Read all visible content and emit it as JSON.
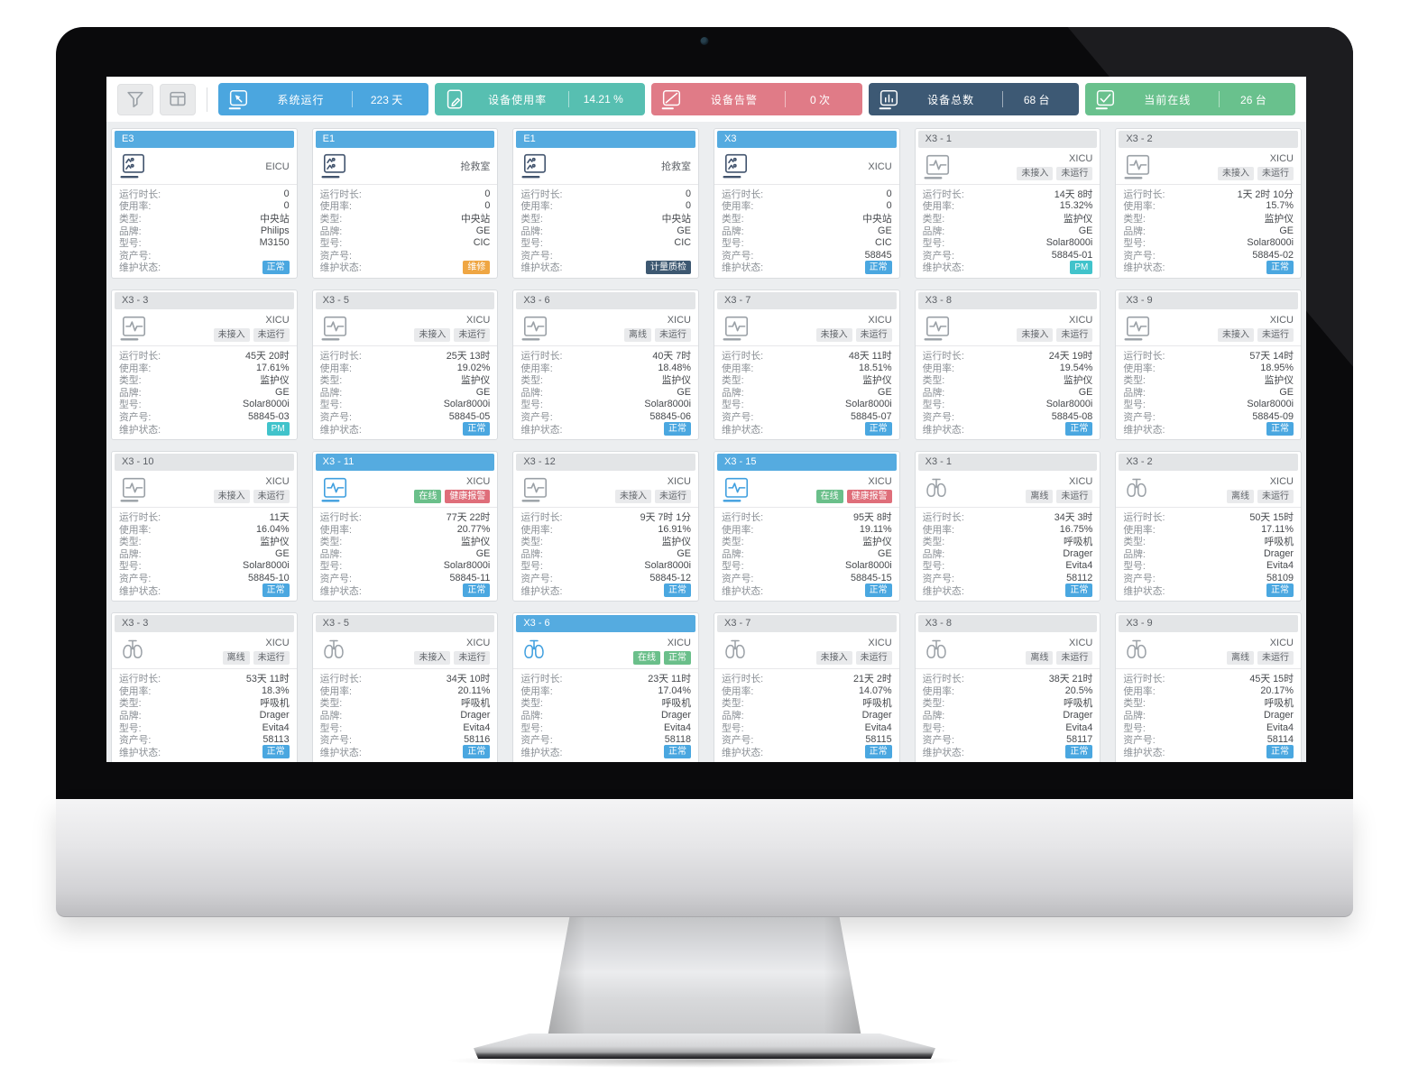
{
  "toolbar": {
    "filter_button": {
      "icon": "filter-icon"
    },
    "layout_button": {
      "icon": "layout-icon"
    },
    "stats": [
      {
        "icon": "monitor-cursor-icon",
        "label": "系统运行",
        "value": "223 天",
        "color": "#4ba6df"
      },
      {
        "icon": "tablet-edit-icon",
        "label": "设备使用率",
        "value": "14.21 %",
        "color": "#57bfb1"
      },
      {
        "icon": "monitor-slash-icon",
        "label": "设备告警",
        "value": "0 次",
        "color": "#e07b87"
      },
      {
        "icon": "monitor-stats-icon",
        "label": "设备总数",
        "value": "68 台",
        "color": "#3d5974"
      },
      {
        "icon": "monitor-check-icon",
        "label": "当前在线",
        "value": "26 台",
        "color": "#69c18d"
      }
    ]
  },
  "field_labels": [
    "运行时长:",
    "使用率:",
    "类型:",
    "品牌:",
    "型号:",
    "资产号:",
    "维护状态:"
  ],
  "header_colors": {
    "blue": {
      "bg": "#55abe0",
      "fg": "#ffffff"
    },
    "gray": {
      "bg": "#e3e5e7",
      "fg": "#5c6066"
    }
  },
  "icon_colors": {
    "navy": "#41536d",
    "gray": "#9aa0a6",
    "online": "#3f9fdf"
  },
  "badge_colors": {
    "gray": {
      "bg": "#e9eaec",
      "fg": "#5f6368"
    },
    "green": {
      "bg": "#6abf8a",
      "fg": "#ffffff"
    },
    "red": {
      "bg": "#df6e7a",
      "fg": "#ffffff"
    },
    "blue": {
      "bg": "#4aa7e0",
      "fg": "#ffffff"
    },
    "orange": {
      "bg": "#efa643",
      "fg": "#ffffff"
    },
    "navy": {
      "bg": "#3d5871",
      "fg": "#ffffff"
    },
    "teal": {
      "bg": "#41c3cb",
      "fg": "#ffffff"
    }
  },
  "cards": [
    {
      "id": "E3",
      "header": "blue",
      "icon": "central-station",
      "state": "navy",
      "location": "EICU",
      "badges": [],
      "values": [
        "0",
        "0",
        "中央站",
        "Philips",
        "M3150",
        ""
      ],
      "maintenance": {
        "text": "正常",
        "type": "blue"
      }
    },
    {
      "id": "E1",
      "header": "blue",
      "icon": "central-station",
      "state": "navy",
      "location": "抢救室",
      "badges": [],
      "values": [
        "0",
        "0",
        "中央站",
        "GE",
        "CIC",
        ""
      ],
      "maintenance": {
        "text": "维修",
        "type": "orange"
      }
    },
    {
      "id": "E1",
      "header": "blue",
      "icon": "central-station",
      "state": "navy",
      "location": "抢救室",
      "badges": [],
      "values": [
        "0",
        "0",
        "中央站",
        "GE",
        "CIC",
        ""
      ],
      "maintenance": {
        "text": "计量质检",
        "type": "navy"
      }
    },
    {
      "id": "X3",
      "header": "blue",
      "icon": "central-station",
      "state": "navy",
      "location": "XICU",
      "badges": [],
      "values": [
        "0",
        "0",
        "中央站",
        "GE",
        "CIC",
        "58845"
      ],
      "maintenance": {
        "text": "正常",
        "type": "blue"
      }
    },
    {
      "id": "X3 - 1",
      "header": "gray",
      "icon": "monitor",
      "state": "gray",
      "location": "XICU",
      "badges": [
        {
          "text": "未接入",
          "type": "gray"
        },
        {
          "text": "未运行",
          "type": "gray"
        }
      ],
      "values": [
        "14天 8时",
        "15.32%",
        "监护仪",
        "GE",
        "Solar8000i",
        "58845-01"
      ],
      "maintenance": {
        "text": "PM",
        "type": "teal"
      }
    },
    {
      "id": "X3 - 2",
      "header": "gray",
      "icon": "monitor",
      "state": "gray",
      "location": "XICU",
      "badges": [
        {
          "text": "未接入",
          "type": "gray"
        },
        {
          "text": "未运行",
          "type": "gray"
        }
      ],
      "values": [
        "1天 2时 10分",
        "15.7%",
        "监护仪",
        "GE",
        "Solar8000i",
        "58845-02"
      ],
      "maintenance": {
        "text": "正常",
        "type": "blue"
      }
    },
    {
      "id": "X3 - 3",
      "header": "gray",
      "icon": "monitor",
      "state": "gray",
      "location": "XICU",
      "badges": [
        {
          "text": "未接入",
          "type": "gray"
        },
        {
          "text": "未运行",
          "type": "gray"
        }
      ],
      "values": [
        "45天 20时",
        "17.61%",
        "监护仪",
        "GE",
        "Solar8000i",
        "58845-03"
      ],
      "maintenance": {
        "text": "PM",
        "type": "teal"
      }
    },
    {
      "id": "X3 - 5",
      "header": "gray",
      "icon": "monitor",
      "state": "gray",
      "location": "XICU",
      "badges": [
        {
          "text": "未接入",
          "type": "gray"
        },
        {
          "text": "未运行",
          "type": "gray"
        }
      ],
      "values": [
        "25天 13时",
        "19.02%",
        "监护仪",
        "GE",
        "Solar8000i",
        "58845-05"
      ],
      "maintenance": {
        "text": "正常",
        "type": "blue"
      }
    },
    {
      "id": "X3 - 6",
      "header": "gray",
      "icon": "monitor",
      "state": "gray",
      "location": "XICU",
      "badges": [
        {
          "text": "离线",
          "type": "gray"
        },
        {
          "text": "未运行",
          "type": "gray"
        }
      ],
      "values": [
        "40天 7时",
        "18.48%",
        "监护仪",
        "GE",
        "Solar8000i",
        "58845-06"
      ],
      "maintenance": {
        "text": "正常",
        "type": "blue"
      }
    },
    {
      "id": "X3 - 7",
      "header": "gray",
      "icon": "monitor",
      "state": "gray",
      "location": "XICU",
      "badges": [
        {
          "text": "未接入",
          "type": "gray"
        },
        {
          "text": "未运行",
          "type": "gray"
        }
      ],
      "values": [
        "48天 11时",
        "18.51%",
        "监护仪",
        "GE",
        "Solar8000i",
        "58845-07"
      ],
      "maintenance": {
        "text": "正常",
        "type": "blue"
      }
    },
    {
      "id": "X3 - 8",
      "header": "gray",
      "icon": "monitor",
      "state": "gray",
      "location": "XICU",
      "badges": [
        {
          "text": "未接入",
          "type": "gray"
        },
        {
          "text": "未运行",
          "type": "gray"
        }
      ],
      "values": [
        "24天 19时",
        "19.54%",
        "监护仪",
        "GE",
        "Solar8000i",
        "58845-08"
      ],
      "maintenance": {
        "text": "正常",
        "type": "blue"
      }
    },
    {
      "id": "X3 - 9",
      "header": "gray",
      "icon": "monitor",
      "state": "gray",
      "location": "XICU",
      "badges": [
        {
          "text": "未接入",
          "type": "gray"
        },
        {
          "text": "未运行",
          "type": "gray"
        }
      ],
      "values": [
        "57天 14时",
        "18.95%",
        "监护仪",
        "GE",
        "Solar8000i",
        "58845-09"
      ],
      "maintenance": {
        "text": "正常",
        "type": "blue"
      }
    },
    {
      "id": "X3 - 10",
      "header": "gray",
      "icon": "monitor",
      "state": "gray",
      "location": "XICU",
      "badges": [
        {
          "text": "未接入",
          "type": "gray"
        },
        {
          "text": "未运行",
          "type": "gray"
        }
      ],
      "values": [
        "11天",
        "16.04%",
        "监护仪",
        "GE",
        "Solar8000i",
        "58845-10"
      ],
      "maintenance": {
        "text": "正常",
        "type": "blue"
      }
    },
    {
      "id": "X3 - 11",
      "header": "blue",
      "icon": "monitor",
      "state": "online",
      "location": "XICU",
      "badges": [
        {
          "text": "在线",
          "type": "green"
        },
        {
          "text": "健康报警",
          "type": "red"
        }
      ],
      "values": [
        "77天 22时",
        "20.77%",
        "监护仪",
        "GE",
        "Solar8000i",
        "58845-11"
      ],
      "maintenance": {
        "text": "正常",
        "type": "blue"
      }
    },
    {
      "id": "X3 - 12",
      "header": "gray",
      "icon": "monitor",
      "state": "gray",
      "location": "XICU",
      "badges": [
        {
          "text": "未接入",
          "type": "gray"
        },
        {
          "text": "未运行",
          "type": "gray"
        }
      ],
      "values": [
        "9天 7时 1分",
        "16.91%",
        "监护仪",
        "GE",
        "Solar8000i",
        "58845-12"
      ],
      "maintenance": {
        "text": "正常",
        "type": "blue"
      }
    },
    {
      "id": "X3 - 15",
      "header": "blue",
      "icon": "monitor",
      "state": "online",
      "location": "XICU",
      "badges": [
        {
          "text": "在线",
          "type": "green"
        },
        {
          "text": "健康报警",
          "type": "red"
        }
      ],
      "values": [
        "95天 8时",
        "19.11%",
        "监护仪",
        "GE",
        "Solar8000i",
        "58845-15"
      ],
      "maintenance": {
        "text": "正常",
        "type": "blue"
      }
    },
    {
      "id": "X3 - 1",
      "header": "gray",
      "icon": "ventilator",
      "state": "gray",
      "location": "XICU",
      "badges": [
        {
          "text": "离线",
          "type": "gray"
        },
        {
          "text": "未运行",
          "type": "gray"
        }
      ],
      "values": [
        "34天 3时",
        "16.75%",
        "呼吸机",
        "Drager",
        "Evita4",
        "58112"
      ],
      "maintenance": {
        "text": "正常",
        "type": "blue"
      }
    },
    {
      "id": "X3 - 2",
      "header": "gray",
      "icon": "ventilator",
      "state": "gray",
      "location": "XICU",
      "badges": [
        {
          "text": "离线",
          "type": "gray"
        },
        {
          "text": "未运行",
          "type": "gray"
        }
      ],
      "values": [
        "50天 15时",
        "17.11%",
        "呼吸机",
        "Drager",
        "Evita4",
        "58109"
      ],
      "maintenance": {
        "text": "正常",
        "type": "blue"
      }
    },
    {
      "id": "X3 - 3",
      "header": "gray",
      "icon": "ventilator",
      "state": "gray",
      "location": "XICU",
      "badges": [
        {
          "text": "离线",
          "type": "gray"
        },
        {
          "text": "未运行",
          "type": "gray"
        }
      ],
      "values": [
        "53天 11时",
        "18.3%",
        "呼吸机",
        "Drager",
        "Evita4",
        "58113"
      ],
      "maintenance": {
        "text": "正常",
        "type": "blue"
      }
    },
    {
      "id": "X3 - 5",
      "header": "gray",
      "icon": "ventilator",
      "state": "gray",
      "location": "XICU",
      "badges": [
        {
          "text": "未接入",
          "type": "gray"
        },
        {
          "text": "未运行",
          "type": "gray"
        }
      ],
      "values": [
        "34天 10时",
        "20.11%",
        "呼吸机",
        "Drager",
        "Evita4",
        "58116"
      ],
      "maintenance": {
        "text": "正常",
        "type": "blue"
      }
    },
    {
      "id": "X3 - 6",
      "header": "blue",
      "icon": "ventilator",
      "state": "online",
      "location": "XICU",
      "badges": [
        {
          "text": "在线",
          "type": "green"
        },
        {
          "text": "正常",
          "type": "green"
        }
      ],
      "values": [
        "23天 11时",
        "17.04%",
        "呼吸机",
        "Drager",
        "Evita4",
        "58118"
      ],
      "maintenance": {
        "text": "正常",
        "type": "blue"
      }
    },
    {
      "id": "X3 - 7",
      "header": "gray",
      "icon": "ventilator",
      "state": "gray",
      "location": "XICU",
      "badges": [
        {
          "text": "未接入",
          "type": "gray"
        },
        {
          "text": "未运行",
          "type": "gray"
        }
      ],
      "values": [
        "21天 2时",
        "14.07%",
        "呼吸机",
        "Drager",
        "Evita4",
        "58115"
      ],
      "maintenance": {
        "text": "正常",
        "type": "blue"
      }
    },
    {
      "id": "X3 - 8",
      "header": "gray",
      "icon": "ventilator",
      "state": "gray",
      "location": "XICU",
      "badges": [
        {
          "text": "离线",
          "type": "gray"
        },
        {
          "text": "未运行",
          "type": "gray"
        }
      ],
      "values": [
        "38天 21时",
        "20.5%",
        "呼吸机",
        "Drager",
        "Evita4",
        "58117"
      ],
      "maintenance": {
        "text": "正常",
        "type": "blue"
      }
    },
    {
      "id": "X3 - 9",
      "header": "gray",
      "icon": "ventilator",
      "state": "gray",
      "location": "XICU",
      "badges": [
        {
          "text": "离线",
          "type": "gray"
        },
        {
          "text": "未运行",
          "type": "gray"
        }
      ],
      "values": [
        "45天 15时",
        "20.17%",
        "呼吸机",
        "Drager",
        "Evita4",
        "58114"
      ],
      "maintenance": {
        "text": "正常",
        "type": "blue"
      }
    }
  ]
}
